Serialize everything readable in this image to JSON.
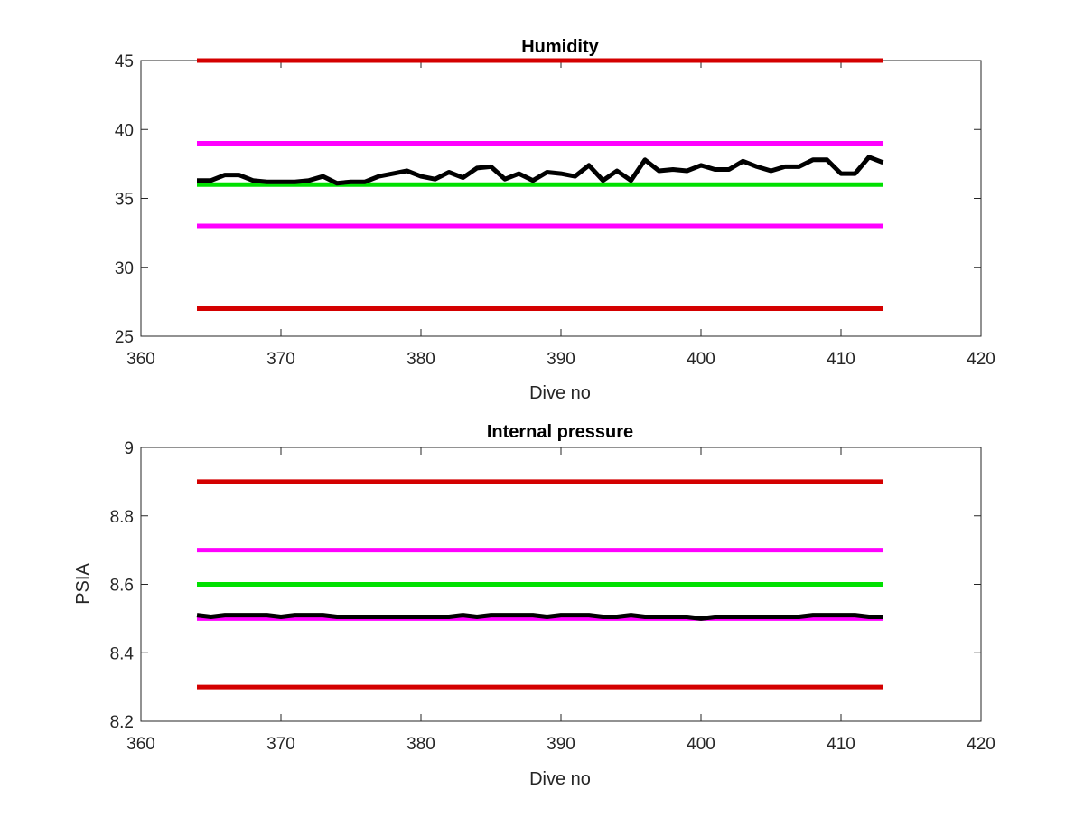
{
  "chart_data": [
    {
      "type": "line",
      "title": "Humidity",
      "xlabel": "Dive no",
      "ylabel": "",
      "xlim": [
        360,
        420
      ],
      "ylim": [
        25,
        45
      ],
      "xticks": [
        360,
        370,
        380,
        390,
        400,
        410,
        420
      ],
      "yticks": [
        25,
        30,
        35,
        40,
        45
      ],
      "grid": false,
      "series": [
        {
          "color": "#000000",
          "x": [
            364,
            365,
            366,
            367,
            368,
            369,
            370,
            371,
            372,
            373,
            374,
            375,
            376,
            377,
            378,
            379,
            380,
            381,
            382,
            383,
            384,
            385,
            386,
            387,
            388,
            389,
            390,
            391,
            392,
            393,
            394,
            395,
            396,
            397,
            398,
            399,
            400,
            401,
            402,
            403,
            404,
            405,
            406,
            407,
            408,
            409,
            410,
            411,
            412,
            413
          ],
          "y": [
            36.3,
            36.3,
            36.7,
            36.7,
            36.3,
            36.2,
            36.2,
            36.2,
            36.3,
            36.6,
            36.1,
            36.2,
            36.2,
            36.6,
            36.8,
            37.0,
            36.6,
            36.4,
            36.9,
            36.5,
            37.2,
            37.3,
            36.4,
            36.8,
            36.3,
            36.9,
            36.8,
            36.6,
            37.4,
            36.3,
            37.0,
            36.3,
            37.8,
            37.0,
            37.1,
            37.0,
            37.4,
            37.1,
            37.1,
            37.7,
            37.3,
            37.0,
            37.3,
            37.3,
            37.8,
            37.8,
            36.8,
            36.8,
            38.0,
            37.6
          ]
        },
        {
          "color": "#d40000",
          "x": [
            364,
            413
          ],
          "y": [
            45,
            45
          ]
        },
        {
          "color": "#ff00ff",
          "x": [
            364,
            413
          ],
          "y": [
            39,
            39
          ]
        },
        {
          "color": "#00e000",
          "x": [
            364,
            413
          ],
          "y": [
            36,
            36
          ]
        },
        {
          "color": "#ff00ff",
          "x": [
            364,
            413
          ],
          "y": [
            33,
            33
          ]
        },
        {
          "color": "#d40000",
          "x": [
            364,
            413
          ],
          "y": [
            27,
            27
          ]
        }
      ]
    },
    {
      "type": "line",
      "title": "Internal pressure",
      "xlabel": "Dive no",
      "ylabel": "PSIA",
      "xlim": [
        360,
        420
      ],
      "ylim": [
        8.2,
        9
      ],
      "xticks": [
        360,
        370,
        380,
        390,
        400,
        410,
        420
      ],
      "yticks": [
        8.2,
        8.4,
        8.6,
        8.8,
        9
      ],
      "grid": false,
      "series": [
        {
          "color": "#000000",
          "x": [
            364,
            365,
            366,
            367,
            368,
            369,
            370,
            371,
            372,
            373,
            374,
            375,
            376,
            377,
            378,
            379,
            380,
            381,
            382,
            383,
            384,
            385,
            386,
            387,
            388,
            389,
            390,
            391,
            392,
            393,
            394,
            395,
            396,
            397,
            398,
            399,
            400,
            401,
            402,
            403,
            404,
            405,
            406,
            407,
            408,
            409,
            410,
            411,
            412,
            413
          ],
          "y": [
            8.51,
            8.505,
            8.51,
            8.51,
            8.51,
            8.51,
            8.505,
            8.51,
            8.51,
            8.51,
            8.505,
            8.505,
            8.505,
            8.505,
            8.505,
            8.505,
            8.505,
            8.505,
            8.505,
            8.51,
            8.505,
            8.51,
            8.51,
            8.51,
            8.51,
            8.505,
            8.51,
            8.51,
            8.51,
            8.505,
            8.505,
            8.51,
            8.505,
            8.505,
            8.505,
            8.505,
            8.5,
            8.505,
            8.505,
            8.505,
            8.505,
            8.505,
            8.505,
            8.505,
            8.51,
            8.51,
            8.51,
            8.51,
            8.505,
            8.505
          ]
        },
        {
          "color": "#d40000",
          "x": [
            364,
            413
          ],
          "y": [
            8.9,
            8.9
          ]
        },
        {
          "color": "#ff00ff",
          "x": [
            364,
            413
          ],
          "y": [
            8.7,
            8.7
          ]
        },
        {
          "color": "#00e000",
          "x": [
            364,
            413
          ],
          "y": [
            8.6,
            8.6
          ]
        },
        {
          "color": "#ff00ff",
          "x": [
            364,
            413
          ],
          "y": [
            8.5,
            8.5
          ]
        },
        {
          "color": "#d40000",
          "x": [
            364,
            413
          ],
          "y": [
            8.3,
            8.3
          ]
        }
      ]
    }
  ]
}
